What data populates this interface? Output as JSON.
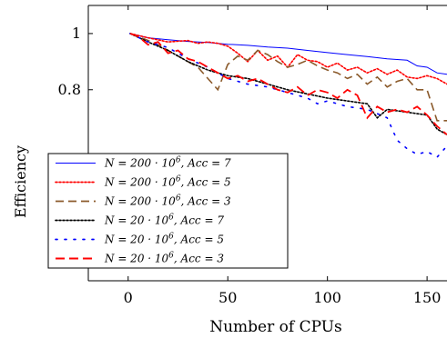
{
  "chart_data": {
    "type": "line",
    "title": "",
    "xlabel": "Number of CPUs",
    "ylabel": "Efficiency",
    "xlim": [
      -20,
      160
    ],
    "ylim": [
      0.12,
      1.1
    ],
    "x_ticks": [
      0,
      50,
      100,
      150
    ],
    "x_tick_labels": [
      "0",
      "50",
      "100",
      "150"
    ],
    "y_ticks": [
      0.8,
      1.0
    ],
    "y_tick_labels": [
      "0.8",
      "1"
    ],
    "legend_position": "bottom-left",
    "grid": false,
    "series": [
      {
        "name_main": "N = 200 · 10",
        "name_sup": "6",
        "name_tail": ", Acc = 7",
        "color": "#0000ff",
        "dash": "solid",
        "x": [
          1,
          10,
          20,
          30,
          40,
          50,
          60,
          70,
          80,
          90,
          100,
          110,
          120,
          130,
          140,
          145,
          150,
          155,
          160
        ],
        "y": [
          1.0,
          0.985,
          0.978,
          0.972,
          0.968,
          0.962,
          0.958,
          0.952,
          0.948,
          0.94,
          0.932,
          0.925,
          0.918,
          0.91,
          0.905,
          0.885,
          0.88,
          0.86,
          0.855
        ]
      },
      {
        "name_main": "N = 200 · 10",
        "name_sup": "6",
        "name_tail": ", Acc = 5",
        "color": "#ff0000",
        "dash": "dotted",
        "x": [
          1,
          10,
          20,
          30,
          35,
          40,
          45,
          50,
          55,
          60,
          65,
          70,
          75,
          80,
          85,
          90,
          95,
          100,
          105,
          110,
          115,
          120,
          125,
          130,
          135,
          140,
          145,
          150,
          155,
          160
        ],
        "y": [
          1.0,
          0.985,
          0.97,
          0.975,
          0.965,
          0.97,
          0.965,
          0.955,
          0.93,
          0.9,
          0.94,
          0.905,
          0.92,
          0.88,
          0.925,
          0.905,
          0.9,
          0.88,
          0.895,
          0.87,
          0.88,
          0.86,
          0.875,
          0.855,
          0.87,
          0.845,
          0.84,
          0.85,
          0.84,
          0.82
        ]
      },
      {
        "name_main": "N = 200 · 10",
        "name_sup": "6",
        "name_tail": ", Acc = 3",
        "color": "#8b5a2b",
        "dash": "dashed",
        "x": [
          1,
          5,
          10,
          15,
          20,
          25,
          30,
          35,
          40,
          45,
          50,
          55,
          60,
          65,
          70,
          75,
          80,
          85,
          90,
          95,
          100,
          105,
          110,
          115,
          120,
          125,
          130,
          135,
          140,
          145,
          150,
          155,
          160
        ],
        "y": [
          1.0,
          0.99,
          0.975,
          0.96,
          0.94,
          0.92,
          0.9,
          0.88,
          0.84,
          0.8,
          0.89,
          0.92,
          0.905,
          0.94,
          0.925,
          0.9,
          0.88,
          0.89,
          0.905,
          0.885,
          0.87,
          0.86,
          0.84,
          0.855,
          0.82,
          0.845,
          0.81,
          0.83,
          0.84,
          0.8,
          0.8,
          0.69,
          0.69
        ]
      },
      {
        "name_main": "N = 20 · 10",
        "name_sup": "6",
        "name_tail": ", Acc = 7",
        "color": "#000000",
        "dash": "dotted",
        "x": [
          1,
          10,
          20,
          30,
          40,
          50,
          60,
          70,
          80,
          90,
          100,
          110,
          120,
          125,
          130,
          140,
          150,
          155,
          160
        ],
        "y": [
          1.0,
          0.97,
          0.94,
          0.9,
          0.87,
          0.85,
          0.84,
          0.82,
          0.8,
          0.785,
          0.77,
          0.76,
          0.75,
          0.7,
          0.73,
          0.72,
          0.71,
          0.66,
          0.64
        ]
      },
      {
        "name_main": "N = 20 · 10",
        "name_sup": "6",
        "name_tail": ", Acc = 5",
        "color": "#0000ff",
        "dash": "sparse-dotted",
        "x": [
          1,
          10,
          20,
          30,
          40,
          50,
          60,
          70,
          80,
          90,
          95,
          100,
          110,
          120,
          130,
          135,
          140,
          145,
          150,
          155,
          160
        ],
        "y": [
          1.0,
          0.97,
          0.95,
          0.91,
          0.88,
          0.84,
          0.82,
          0.81,
          0.79,
          0.77,
          0.75,
          0.76,
          0.74,
          0.73,
          0.7,
          0.62,
          0.59,
          0.57,
          0.58,
          0.56,
          0.6
        ]
      },
      {
        "name_main": "N = 20 · 10",
        "name_sup": "6",
        "name_tail": ", Acc = 3",
        "color": "#ff0000",
        "dash": "long-dashed",
        "x": [
          1,
          5,
          10,
          15,
          20,
          25,
          30,
          35,
          40,
          45,
          50,
          55,
          60,
          65,
          70,
          75,
          80,
          85,
          90,
          95,
          100,
          105,
          110,
          115,
          120,
          125,
          130,
          135,
          140,
          145,
          150,
          155,
          160
        ],
        "y": [
          1.0,
          0.99,
          0.96,
          0.97,
          0.93,
          0.94,
          0.91,
          0.9,
          0.88,
          0.86,
          0.84,
          0.85,
          0.83,
          0.84,
          0.82,
          0.8,
          0.79,
          0.81,
          0.78,
          0.8,
          0.79,
          0.77,
          0.8,
          0.78,
          0.7,
          0.74,
          0.72,
          0.73,
          0.72,
          0.74,
          0.71,
          0.67,
          0.64
        ]
      }
    ]
  }
}
